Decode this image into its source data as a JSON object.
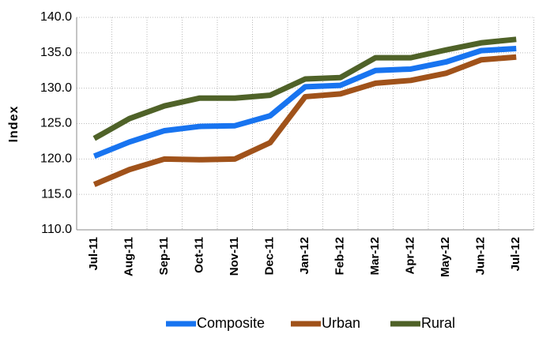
{
  "chart_data": {
    "type": "line",
    "y_label": "Index",
    "categories": [
      "Jul-11",
      "Aug-11",
      "Sep-11",
      "Oct-11",
      "Nov-11",
      "Dec-11",
      "Jan-12",
      "Feb-12",
      "Mar-12",
      "Apr-12",
      "May-12",
      "Jun-12",
      "Jul-12"
    ],
    "series": [
      {
        "name": "Composite",
        "color": "#1874f0",
        "values": [
          120.4,
          122.4,
          124.0,
          124.6,
          124.7,
          126.1,
          130.2,
          130.4,
          132.5,
          132.7,
          133.7,
          135.3,
          135.6
        ]
      },
      {
        "name": "Urban",
        "color": "#a0521a",
        "values": [
          116.4,
          118.5,
          120.0,
          119.9,
          120.0,
          122.3,
          128.8,
          129.2,
          130.7,
          131.1,
          132.1,
          134.0,
          134.4
        ]
      },
      {
        "name": "Rural",
        "color": "#4f6228",
        "values": [
          122.9,
          125.7,
          127.5,
          128.6,
          128.6,
          129.0,
          131.3,
          131.5,
          134.3,
          134.3,
          135.4,
          136.4,
          136.9
        ]
      }
    ],
    "ylim": [
      110,
      140
    ],
    "yticks": [
      {
        "value": 110,
        "label": "110.0"
      },
      {
        "value": 115,
        "label": "115.0"
      },
      {
        "value": 120,
        "label": "120.0"
      },
      {
        "value": 125,
        "label": "125.0"
      },
      {
        "value": 130,
        "label": "130.0"
      },
      {
        "value": 135,
        "label": "135.0"
      },
      {
        "value": 140,
        "label": "140.0"
      }
    ],
    "grid": true,
    "legend": "bottom"
  }
}
